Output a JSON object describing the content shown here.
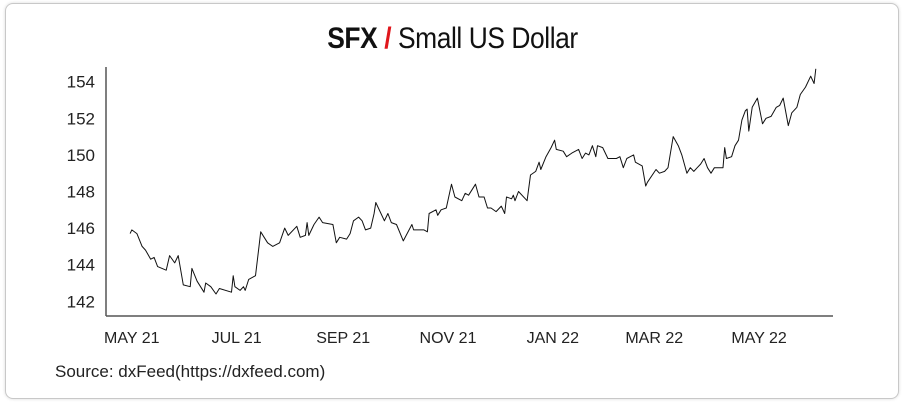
{
  "chart_data": {
    "type": "line",
    "title": {
      "symbol": "SFX",
      "separator": "/",
      "name": "Small US Dollar"
    },
    "xlabel": "",
    "ylabel": "",
    "xlim": [
      "2021-04-16",
      "2022-06-13"
    ],
    "ylim": [
      141.2,
      154.8
    ],
    "yticks": [
      142,
      144,
      146,
      148,
      150,
      152,
      154
    ],
    "xticks": [
      {
        "date": "2021-05-01",
        "label": "MAY 21"
      },
      {
        "date": "2021-07-01",
        "label": "JUL 21"
      },
      {
        "date": "2021-09-01",
        "label": "SEP 21"
      },
      {
        "date": "2021-11-01",
        "label": "NOV 21"
      },
      {
        "date": "2022-01-01",
        "label": "JAN 22"
      },
      {
        "date": "2022-03-01",
        "label": "MAR 22"
      },
      {
        "date": "2022-05-01",
        "label": "MAY 22"
      }
    ],
    "grid": false,
    "line_color": "#111111",
    "points": [
      [
        "2021-04-30",
        145.7
      ],
      [
        "2021-05-01",
        145.9
      ],
      [
        "2021-05-04",
        145.7
      ],
      [
        "2021-05-07",
        145.0
      ],
      [
        "2021-05-09",
        144.8
      ],
      [
        "2021-05-12",
        144.3
      ],
      [
        "2021-05-14",
        144.4
      ],
      [
        "2021-05-16",
        143.9
      ],
      [
        "2021-05-21",
        143.7
      ],
      [
        "2021-05-23",
        144.5
      ],
      [
        "2021-05-26",
        144.1
      ],
      [
        "2021-05-28",
        144.5
      ],
      [
        "2021-05-31",
        142.9
      ],
      [
        "2021-06-04",
        142.8
      ],
      [
        "2021-06-05",
        143.8
      ],
      [
        "2021-06-08",
        143.1
      ],
      [
        "2021-06-12",
        142.5
      ],
      [
        "2021-06-13",
        143.0
      ],
      [
        "2021-06-16",
        142.8
      ],
      [
        "2021-06-19",
        142.4
      ],
      [
        "2021-06-21",
        142.7
      ],
      [
        "2021-06-28",
        142.5
      ],
      [
        "2021-06-29",
        143.4
      ],
      [
        "2021-06-30",
        142.8
      ],
      [
        "2021-07-03",
        142.6
      ],
      [
        "2021-07-05",
        142.8
      ],
      [
        "2021-07-06",
        142.6
      ],
      [
        "2021-07-08",
        143.2
      ],
      [
        "2021-07-12",
        143.4
      ],
      [
        "2021-07-14",
        145.0
      ],
      [
        "2021-07-15",
        145.8
      ],
      [
        "2021-07-19",
        145.2
      ],
      [
        "2021-07-22",
        145.0
      ],
      [
        "2021-07-26",
        145.2
      ],
      [
        "2021-07-29",
        146.0
      ],
      [
        "2021-07-31",
        145.6
      ],
      [
        "2021-08-05",
        146.1
      ],
      [
        "2021-08-07",
        145.5
      ],
      [
        "2021-08-10",
        145.6
      ],
      [
        "2021-08-11",
        146.3
      ],
      [
        "2021-08-12",
        145.6
      ],
      [
        "2021-08-15",
        146.2
      ],
      [
        "2021-08-18",
        146.6
      ],
      [
        "2021-08-20",
        146.3
      ],
      [
        "2021-08-26",
        146.2
      ],
      [
        "2021-08-28",
        145.2
      ],
      [
        "2021-08-30",
        145.5
      ],
      [
        "2021-09-03",
        145.4
      ],
      [
        "2021-09-05",
        145.7
      ],
      [
        "2021-09-07",
        146.4
      ],
      [
        "2021-09-10",
        146.6
      ],
      [
        "2021-09-12",
        146.4
      ],
      [
        "2021-09-14",
        145.9
      ],
      [
        "2021-09-17",
        146.0
      ],
      [
        "2021-09-19",
        146.8
      ],
      [
        "2021-09-20",
        147.4
      ],
      [
        "2021-09-25",
        146.4
      ],
      [
        "2021-09-27",
        146.8
      ],
      [
        "2021-09-29",
        146.3
      ],
      [
        "2021-10-02",
        146.2
      ],
      [
        "2021-10-06",
        145.3
      ],
      [
        "2021-10-11",
        146.2
      ],
      [
        "2021-10-12",
        145.9
      ],
      [
        "2021-10-18",
        145.9
      ],
      [
        "2021-10-20",
        145.8
      ],
      [
        "2021-10-21",
        146.8
      ],
      [
        "2021-10-25",
        147.0
      ],
      [
        "2021-10-26",
        146.7
      ],
      [
        "2021-10-28",
        147.0
      ],
      [
        "2021-10-31",
        147.1
      ],
      [
        "2021-11-03",
        148.4
      ],
      [
        "2021-11-05",
        147.7
      ],
      [
        "2021-11-09",
        147.5
      ],
      [
        "2021-11-11",
        147.9
      ],
      [
        "2021-11-13",
        147.8
      ],
      [
        "2021-11-17",
        148.4
      ],
      [
        "2021-11-19",
        147.7
      ],
      [
        "2021-11-22",
        147.7
      ],
      [
        "2021-11-24",
        147.1
      ],
      [
        "2021-11-26",
        147.1
      ],
      [
        "2021-11-29",
        146.9
      ],
      [
        "2021-12-02",
        147.2
      ],
      [
        "2021-12-04",
        146.8
      ],
      [
        "2021-12-05",
        147.7
      ],
      [
        "2021-12-08",
        147.6
      ],
      [
        "2021-12-09",
        147.8
      ],
      [
        "2021-12-10",
        147.5
      ],
      [
        "2021-12-12",
        148.0
      ],
      [
        "2021-12-17",
        147.5
      ],
      [
        "2021-12-19",
        148.9
      ],
      [
        "2021-12-22",
        149.1
      ],
      [
        "2021-12-24",
        149.6
      ],
      [
        "2021-12-25",
        149.2
      ],
      [
        "2021-12-28",
        149.9
      ],
      [
        "2021-12-31",
        150.4
      ],
      [
        "2022-01-02",
        150.8
      ],
      [
        "2022-01-03",
        150.3
      ],
      [
        "2022-01-07",
        150.2
      ],
      [
        "2022-01-09",
        149.9
      ],
      [
        "2022-01-12",
        150.1
      ],
      [
        "2022-01-16",
        150.3
      ],
      [
        "2022-01-18",
        149.8
      ],
      [
        "2022-01-20",
        150.1
      ],
      [
        "2022-01-22",
        150.0
      ],
      [
        "2022-01-24",
        150.5
      ],
      [
        "2022-01-26",
        149.9
      ],
      [
        "2022-01-27",
        150.5
      ],
      [
        "2022-01-30",
        150.4
      ],
      [
        "2022-02-02",
        149.8
      ],
      [
        "2022-02-07",
        149.8
      ],
      [
        "2022-02-09",
        149.9
      ],
      [
        "2022-02-11",
        149.3
      ],
      [
        "2022-02-13",
        149.8
      ],
      [
        "2022-02-15",
        149.9
      ],
      [
        "2022-02-17",
        150.0
      ],
      [
        "2022-02-18",
        149.6
      ],
      [
        "2022-02-22",
        149.4
      ],
      [
        "2022-02-24",
        148.3
      ],
      [
        "2022-02-25",
        148.5
      ],
      [
        "2022-03-02",
        149.2
      ],
      [
        "2022-03-04",
        149.0
      ],
      [
        "2022-03-07",
        149.1
      ],
      [
        "2022-03-09",
        149.3
      ],
      [
        "2022-03-12",
        151.0
      ],
      [
        "2022-03-15",
        150.5
      ],
      [
        "2022-03-17",
        150.0
      ],
      [
        "2022-03-20",
        149.0
      ],
      [
        "2022-03-22",
        149.3
      ],
      [
        "2022-03-24",
        149.1
      ],
      [
        "2022-03-26",
        149.3
      ],
      [
        "2022-03-28",
        149.5
      ],
      [
        "2022-03-30",
        149.8
      ],
      [
        "2022-04-01",
        149.3
      ],
      [
        "2022-04-03",
        149.0
      ],
      [
        "2022-04-05",
        149.3
      ],
      [
        "2022-04-10",
        149.3
      ],
      [
        "2022-04-11",
        150.4
      ],
      [
        "2022-04-12",
        149.8
      ],
      [
        "2022-04-15",
        149.9
      ],
      [
        "2022-04-17",
        150.5
      ],
      [
        "2022-04-19",
        150.8
      ],
      [
        "2022-04-21",
        151.9
      ],
      [
        "2022-04-23",
        152.4
      ],
      [
        "2022-04-24",
        152.5
      ],
      [
        "2022-04-25",
        151.3
      ],
      [
        "2022-04-27",
        152.6
      ],
      [
        "2022-04-30",
        153.1
      ],
      [
        "2022-05-03",
        151.7
      ],
      [
        "2022-05-05",
        152.0
      ],
      [
        "2022-05-08",
        152.1
      ],
      [
        "2022-05-11",
        152.6
      ],
      [
        "2022-05-13",
        152.7
      ],
      [
        "2022-05-15",
        153.1
      ],
      [
        "2022-05-18",
        151.6
      ],
      [
        "2022-05-20",
        152.3
      ],
      [
        "2022-05-23",
        152.6
      ],
      [
        "2022-05-25",
        153.3
      ],
      [
        "2022-05-28",
        153.7
      ],
      [
        "2022-05-31",
        154.3
      ],
      [
        "2022-06-02",
        153.9
      ],
      [
        "2022-06-03",
        154.7
      ]
    ]
  },
  "source": "Source: dxFeed(https://dxfeed.com)"
}
